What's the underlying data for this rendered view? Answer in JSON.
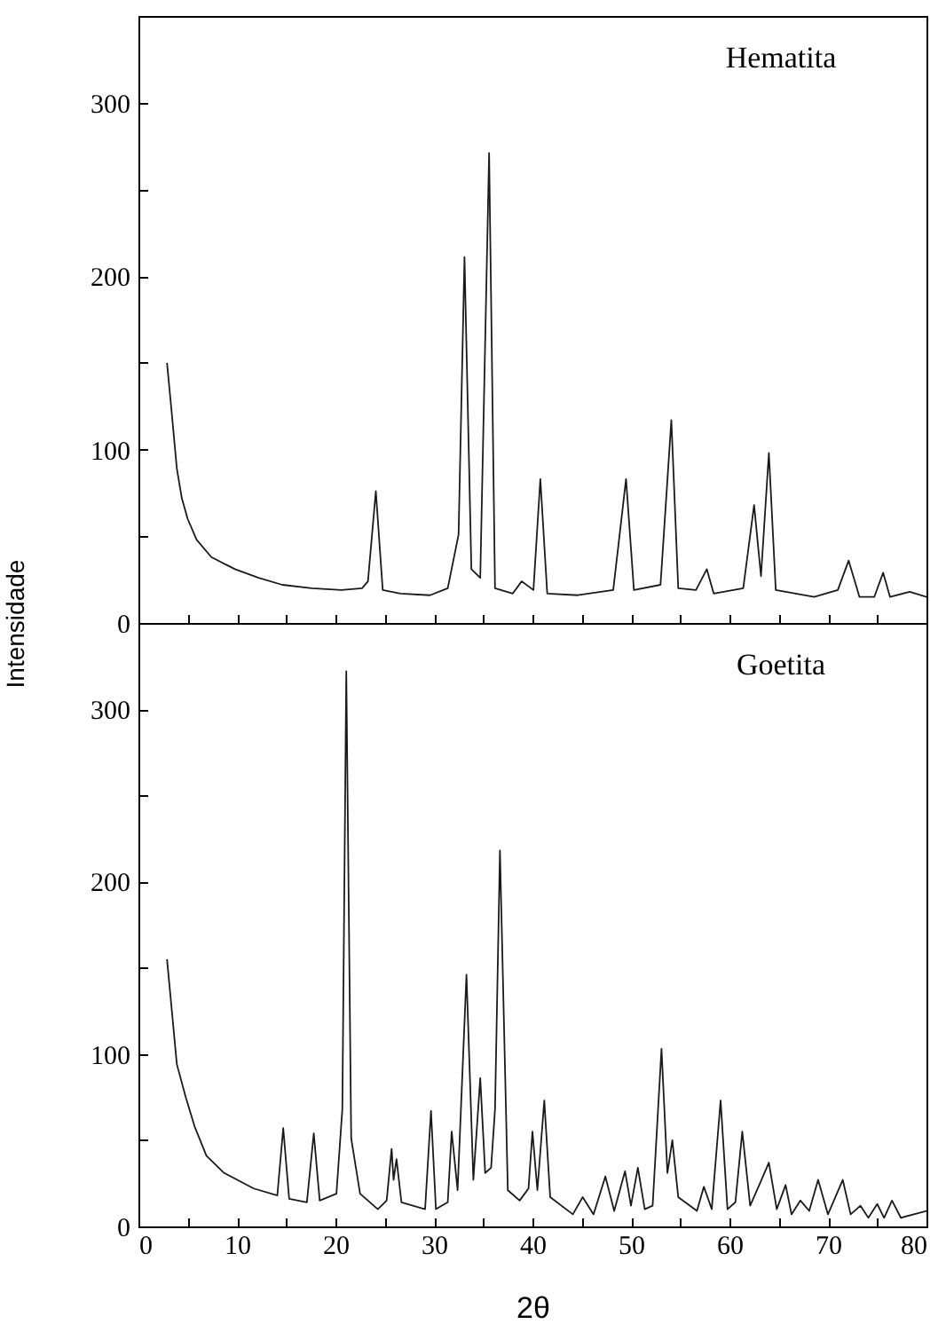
{
  "chart_data": [
    {
      "type": "line",
      "ylabel": "Intensidade",
      "annotations": [
        "Hematita"
      ],
      "tick_labels": "y",
      "xlim": [
        0,
        80
      ],
      "ylim": [
        0,
        350
      ],
      "xticks": [
        0,
        {
          "value": 5,
          "label": null
        },
        10,
        {
          "value": 15,
          "label": null
        },
        20,
        {
          "value": 25,
          "label": null
        },
        30,
        {
          "value": 35,
          "label": null
        },
        40,
        {
          "value": 45,
          "label": null
        },
        50,
        {
          "value": 55,
          "label": null
        },
        60,
        {
          "value": 65,
          "label": null
        },
        70,
        {
          "value": 75,
          "label": null
        },
        80
      ],
      "yticks": [
        0,
        {
          "value": 50,
          "label": null
        },
        100,
        {
          "value": 150,
          "label": null
        },
        200,
        {
          "value": 250,
          "label": null
        },
        300
      ],
      "x": [
        2.9,
        3.3,
        3.9,
        4.4,
        5.0,
        5.9,
        7.4,
        9.8,
        12.2,
        14.6,
        17.6,
        20.6,
        22.7,
        23.3,
        24.1,
        24.8,
        26.6,
        29.6,
        31.4,
        32.5,
        33.1,
        33.8,
        34.7,
        35.6,
        36.2,
        38.0,
        38.9,
        40.1,
        40.8,
        41.5,
        44.6,
        48.2,
        49.5,
        50.3,
        53.0,
        54.1,
        54.8,
        56.6,
        57.7,
        58.4,
        61.4,
        62.5,
        63.2,
        64.0,
        64.7,
        68.6,
        71.0,
        72.1,
        73.2,
        74.7,
        75.6,
        76.3,
        78.3,
        80
      ],
      "series": [
        {
          "color": "#1a1a1a",
          "values": [
            150,
            126,
            89,
            72,
            60,
            48,
            38,
            31,
            26,
            22,
            20,
            19,
            20,
            24,
            76,
            19,
            17,
            16,
            20,
            51,
            211,
            31,
            26,
            271,
            20,
            17,
            24,
            19,
            83,
            17,
            16,
            19,
            83,
            19,
            22,
            117,
            20,
            19,
            31,
            17,
            20,
            68,
            27,
            98,
            19,
            15,
            19,
            36,
            15,
            15,
            29,
            15,
            18,
            15
          ]
        }
      ]
    },
    {
      "type": "line",
      "xlabel": "2θ",
      "annotations": [
        "Goetita"
      ],
      "xlim": [
        0,
        80
      ],
      "ylim": [
        0,
        350
      ],
      "xticks": [
        0,
        {
          "value": 5,
          "label": null
        },
        10,
        {
          "value": 15,
          "label": null
        },
        20,
        {
          "value": 25,
          "label": null
        },
        30,
        {
          "value": 35,
          "label": null
        },
        40,
        {
          "value": 45,
          "label": null
        },
        50,
        {
          "value": 55,
          "label": null
        },
        60,
        {
          "value": 65,
          "label": null
        },
        70,
        {
          "value": 75,
          "label": null
        },
        80
      ],
      "yticks": [
        0,
        {
          "value": 50,
          "label": null
        },
        100,
        {
          "value": 150,
          "label": null
        },
        200,
        {
          "value": 250,
          "label": null
        },
        300
      ],
      "x": [
        2.9,
        3.9,
        4.8,
        5.7,
        6.9,
        8.7,
        11.7,
        14.1,
        14.7,
        15.3,
        17.1,
        17.8,
        18.4,
        20.1,
        20.7,
        21.1,
        21.6,
        22.5,
        24.3,
        25.2,
        25.7,
        25.9,
        26.2,
        26.7,
        29.1,
        29.7,
        30.2,
        31.4,
        31.8,
        32.4,
        33.3,
        34.0,
        34.7,
        35.2,
        35.8,
        36.2,
        36.7,
        37.5,
        38.7,
        39.6,
        40.0,
        40.5,
        41.2,
        41.8,
        44.1,
        45.1,
        46.2,
        47.4,
        48.3,
        49.4,
        50.0,
        50.7,
        51.4,
        52.2,
        53.1,
        53.7,
        54.2,
        54.8,
        56.7,
        57.4,
        58.2,
        59.1,
        59.8,
        60.6,
        61.3,
        62.1,
        63.1,
        64.0,
        64.8,
        65.7,
        66.3,
        67.2,
        68.1,
        69.0,
        70.0,
        71.5,
        72.3,
        73.3,
        74.1,
        75.0,
        75.7,
        76.5,
        77.4,
        80
      ],
      "series": [
        {
          "color": "#1a1a1a",
          "values": [
            155,
            94,
            75,
            58,
            41,
            31,
            22,
            18,
            57,
            16,
            14,
            54,
            15,
            19,
            68,
            322,
            51,
            19,
            10,
            15,
            45,
            27,
            39,
            14,
            10,
            67,
            10,
            14,
            55,
            21,
            146,
            27,
            86,
            31,
            34,
            68,
            218,
            21,
            15,
            22,
            55,
            21,
            73,
            17,
            7,
            17,
            7,
            29,
            9,
            32,
            12,
            34,
            10,
            12,
            103,
            31,
            50,
            17,
            9,
            23,
            10,
            73,
            10,
            14,
            55,
            12,
            25,
            37,
            10,
            24,
            7,
            15,
            9,
            27,
            7,
            27,
            7,
            12,
            5,
            13,
            5,
            15,
            5,
            9
          ]
        }
      ]
    }
  ]
}
